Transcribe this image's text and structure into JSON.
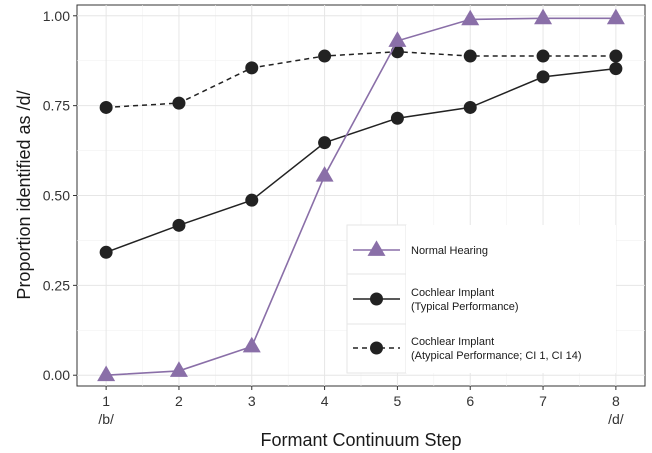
{
  "chart_data": {
    "type": "line",
    "xlabel": "Formant Continuum Step",
    "ylabel": "Proportion identified as /d/",
    "x": [
      1,
      2,
      3,
      4,
      5,
      6,
      7,
      8
    ],
    "x_tick_labels": [
      "1",
      "2",
      "3",
      "4",
      "5",
      "6",
      "7",
      "8"
    ],
    "x_endpoint_labels": {
      "first": "/b/",
      "last": "/d/"
    },
    "y_ticks": [
      "0.00",
      "0.25",
      "0.50",
      "0.75",
      "1.00"
    ],
    "xlim": [
      0.6,
      8.4
    ],
    "ylim": [
      -0.03,
      1.03
    ],
    "grid": true,
    "legend_position": "bottom-right",
    "series": [
      {
        "name": "Normal Hearing",
        "marker": "triangle",
        "line": "solid",
        "color": "#8a6fa8",
        "values": [
          0.0,
          0.012,
          0.08,
          0.555,
          0.93,
          0.99,
          0.993,
          0.993
        ]
      },
      {
        "name": "Cochlear Implant\n(Typical Performance)",
        "marker": "circle",
        "line": "solid",
        "color": "#222222",
        "values": [
          0.342,
          0.417,
          0.487,
          0.647,
          0.715,
          0.745,
          0.83,
          0.853
        ]
      },
      {
        "name": "Cochlear Implant\n(Atypical Performance; CI 1, CI 14)",
        "marker": "circle",
        "line": "dashed",
        "color": "#222222",
        "values": [
          0.745,
          0.757,
          0.855,
          0.888,
          0.9,
          0.888,
          0.888,
          0.888
        ]
      }
    ]
  }
}
